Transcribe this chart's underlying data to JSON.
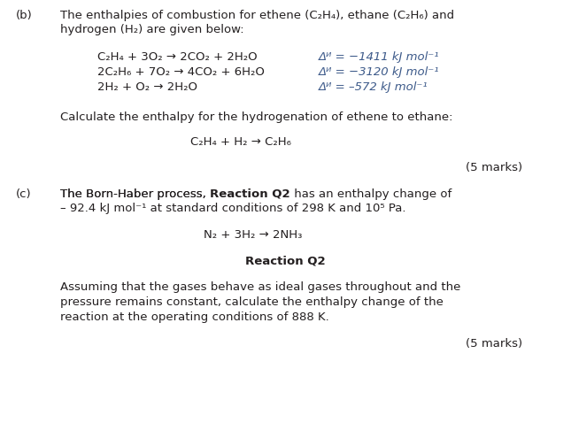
{
  "bg_color": "#ffffff",
  "text_color": "#231f20",
  "dh_color": "#3d5a8a",
  "fig_width": 6.45,
  "fig_height": 4.95,
  "font_size": 9.5,
  "font_family": "DejaVu Sans",
  "line_b1": "(b)   The enthalpies of combustion for ethene (C₂H₄), ethane (C₂H₆) and",
  "line_b2": "       hydrogen (H₂) are given below:",
  "eq1": "C₂H₄ + 3O₂ → 2CO₂ + 2H₂O",
  "eq2": "2C₂H₆ + 7O₂ → 4CO₂ + 6H₂O",
  "eq3": "2H₂ + O₂ → 2H₂O",
  "dh1": "ΔH = −1411 kJ mol⁻¹",
  "dh2": "ΔH = −3120 kJ mol⁻¹",
  "dh3": "ΔH = –572 kJ mol⁻¹",
  "calc_line": "Calculate the enthalpy for the hydrogenation of ethene to ethane:",
  "hydro_eq": "C₂H₄ + H₂ → C₂H₆",
  "marks5": "(5 marks)",
  "born_pre": "The Born-Haber process, ",
  "born_bold": "Reaction Q2",
  "born_post": " has an enthalpy change of",
  "born_line2": "– 92.4 kJ mol⁻¹ at standard conditions of 298 K and 10⁵ Pa.",
  "n2_eq": "N₂ + 3H₂ → 2NH₃",
  "rxn_q2": "Reaction Q2",
  "assume1": "Assuming that the gases behave as ideal gases throughout and the",
  "assume2": "pressure remains constant, calculate the enthalpy change of the",
  "assume3": "reaction at the operating conditions of 888 K."
}
